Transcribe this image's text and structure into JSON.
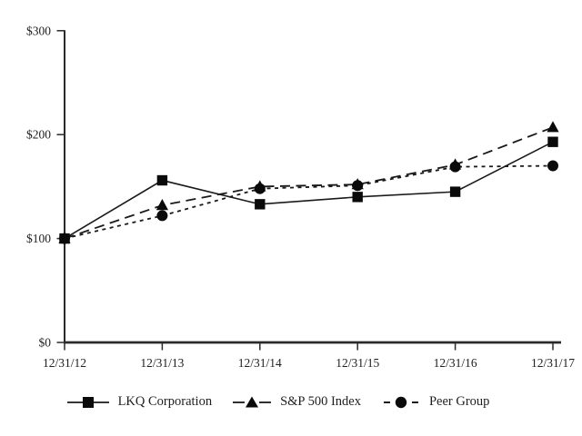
{
  "chart_data": {
    "type": "line",
    "title": "",
    "xlabel": "",
    "ylabel": "",
    "x_categories": [
      "12/31/12",
      "12/31/13",
      "12/31/14",
      "12/31/15",
      "12/31/16",
      "12/31/17"
    ],
    "y_ticks": [
      {
        "value": 0,
        "label": "$0"
      },
      {
        "value": 100,
        "label": "$100"
      },
      {
        "value": 200,
        "label": "$200"
      },
      {
        "value": 300,
        "label": "$300"
      }
    ],
    "ylim": [
      0,
      300
    ],
    "grid": false,
    "legend_position": "bottom",
    "series": [
      {
        "name": "LKQ Corporation",
        "marker": "square",
        "line_style": "solid",
        "values": [
          100,
          156,
          133,
          140,
          145,
          193
        ]
      },
      {
        "name": "S&P 500 Index",
        "marker": "triangle",
        "line_style": "long-dash",
        "values": [
          100,
          132,
          150,
          152,
          171,
          207
        ]
      },
      {
        "name": "Peer Group",
        "marker": "circle",
        "line_style": "short-dash",
        "values": [
          100,
          122,
          148,
          151,
          169,
          170
        ]
      }
    ],
    "colors": {
      "line": "#1a1a1a",
      "marker": "#0a0a0a",
      "axis": "#2a2a2a",
      "background": "#ffffff"
    }
  }
}
